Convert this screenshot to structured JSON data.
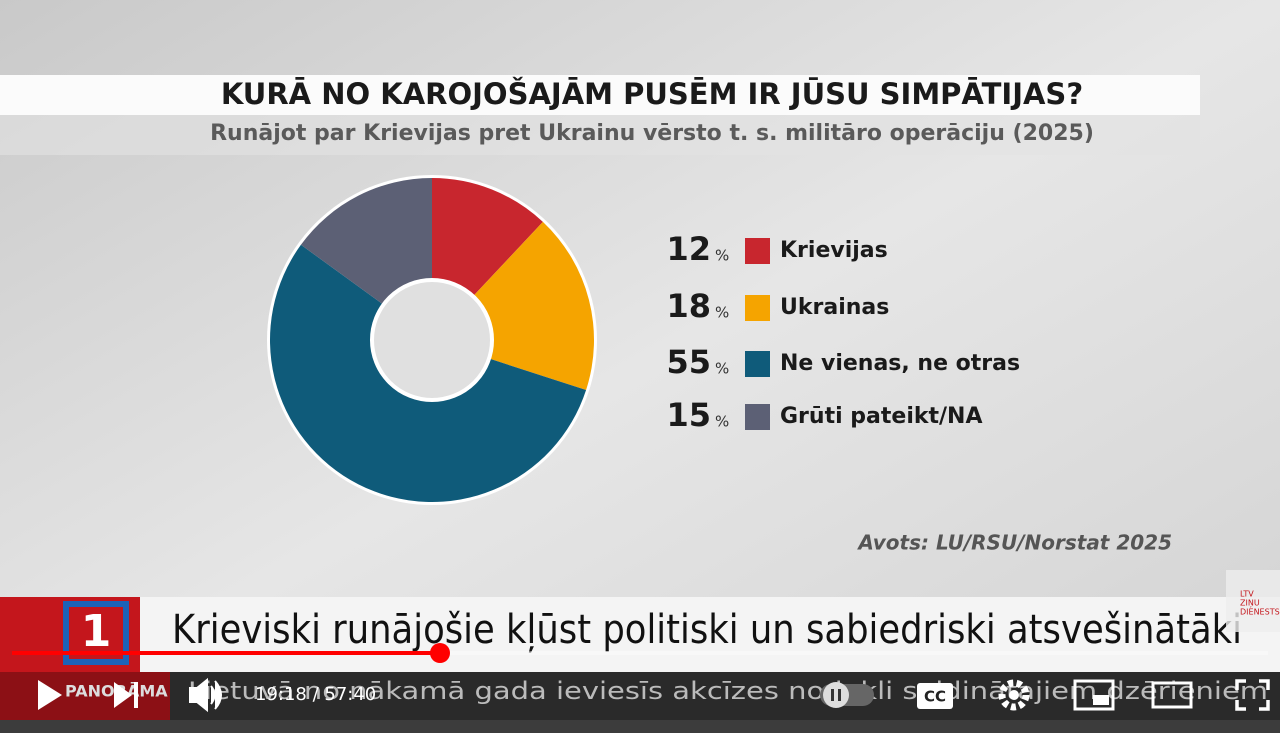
{
  "chart_data": {
    "type": "pie",
    "title": "KURĀ NO KAROJOŠAJĀM PUSĒM IR JŪSU SIMPĀTIJAS?",
    "subtitle": "Runājot par Krievijas pret Ukrainu vērsto t. s. militāro operāciju (2025)",
    "categories": [
      "Krievijas",
      "Ukrainas",
      "Ne vienas, ne otras",
      "Grūti pateikt/NA"
    ],
    "values": [
      12,
      18,
      55,
      15
    ],
    "unit": "%",
    "colors": [
      "#c8262e",
      "#f5a400",
      "#0f5b7a",
      "#5c6075"
    ],
    "source": "Avots: LU/RSU/Norstat 2025"
  },
  "broadcast": {
    "headline": "Krieviski runājošie kļūst politiski un sabiedriski atsvešinātāki",
    "ticker": "Lietuvā no nākamā gada ieviesīs akcīzes nodokli saldinātajiem dzērieniem",
    "logo": "PANORĀMA",
    "watermark": [
      "LTV",
      "ZIŅU",
      "DIENESTS"
    ]
  },
  "player": {
    "time": "19:18 / 57:40",
    "cc": "CC"
  }
}
